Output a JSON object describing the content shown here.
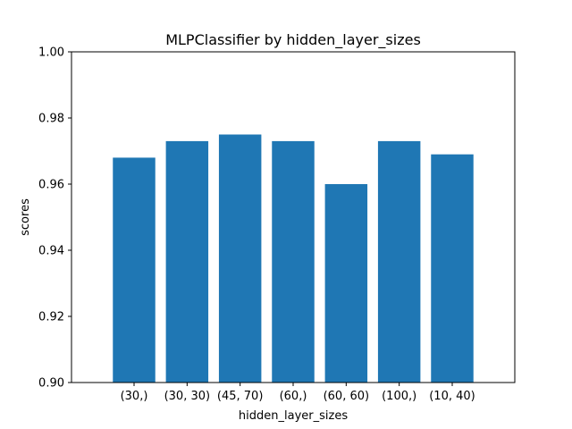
{
  "chart_data": {
    "type": "bar",
    "title": "MLPClassifier by hidden_layer_sizes",
    "xlabel": "hidden_layer_sizes",
    "ylabel": "scores",
    "categories": [
      "(30,)",
      "(30, 30)",
      "(45, 70)",
      "(60,)",
      "(60, 60)",
      "(100,)",
      "(10, 40)"
    ],
    "values": [
      0.968,
      0.973,
      0.975,
      0.973,
      0.96,
      0.973,
      0.969
    ],
    "ylim": [
      0.9,
      1.0
    ],
    "yticks": [
      0.9,
      0.92,
      0.94,
      0.96,
      0.98,
      1.0
    ],
    "ytick_labels": [
      "0.90",
      "0.92",
      "0.94",
      "0.96",
      "0.98",
      "1.00"
    ],
    "grid": false,
    "legend": null,
    "colors": {
      "bar": "#1f77b4",
      "axis": "#000000",
      "background": "#ffffff"
    }
  }
}
